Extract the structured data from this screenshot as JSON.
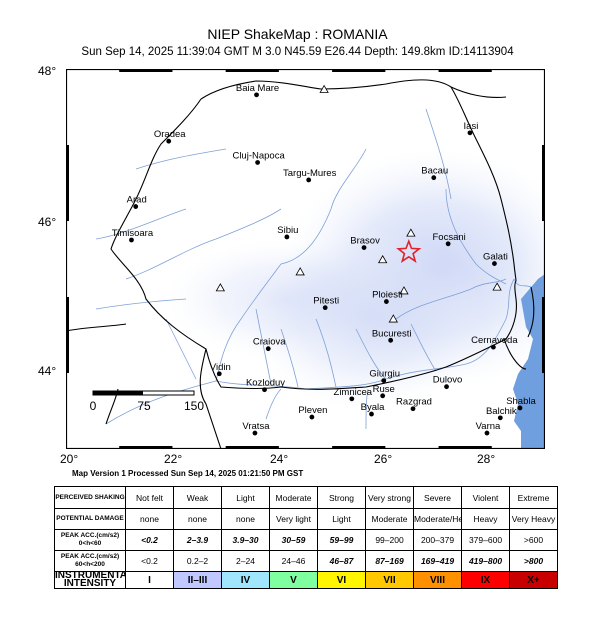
{
  "title": "NIEP ShakeMap : ROMANIA",
  "subtitle": "Sun Sep 14, 2025 11:39:04 GMT   M 3.0   N45.59 E26.44   Depth: 149.8km   ID:14113904",
  "version_line": "Map Version 1 Processed Sun Sep 14, 2025 01:21:50 PM GST",
  "axes": {
    "lat_labels": [
      "48°",
      "46°",
      "44°"
    ],
    "lon_labels": [
      "20°",
      "22°",
      "24°",
      "26°",
      "28°"
    ]
  },
  "scale_bar": {
    "labels": [
      "0",
      "75",
      "150"
    ]
  },
  "epicenter": {
    "lat": 45.59,
    "lon": 26.44,
    "marker": "star-icon",
    "color": "#e0242a"
  },
  "cities": [
    {
      "name": "Baia Mare",
      "lon": 23.58,
      "lat": 47.66
    },
    {
      "name": "Oradea",
      "lon": 21.93,
      "lat": 47.05
    },
    {
      "name": "Iasi",
      "lon": 27.59,
      "lat": 47.16
    },
    {
      "name": "Cluj-Napoca",
      "lon": 23.6,
      "lat": 46.77
    },
    {
      "name": "Targu-Mures",
      "lon": 24.56,
      "lat": 46.54
    },
    {
      "name": "Bacau",
      "lon": 26.91,
      "lat": 46.57
    },
    {
      "name": "Arad",
      "lon": 21.31,
      "lat": 46.19
    },
    {
      "name": "Timisoara",
      "lon": 21.23,
      "lat": 45.75
    },
    {
      "name": "Sibiu",
      "lon": 24.15,
      "lat": 45.79
    },
    {
      "name": "Brasov",
      "lon": 25.6,
      "lat": 45.65
    },
    {
      "name": "Focsani",
      "lon": 27.18,
      "lat": 45.7
    },
    {
      "name": "Galati",
      "lon": 28.05,
      "lat": 45.44
    },
    {
      "name": "Ploiesti",
      "lon": 26.02,
      "lat": 44.94
    },
    {
      "name": "Pitesti",
      "lon": 24.87,
      "lat": 44.86
    },
    {
      "name": "Bucuresti",
      "lon": 26.1,
      "lat": 44.43
    },
    {
      "name": "Craiova",
      "lon": 23.8,
      "lat": 44.32
    },
    {
      "name": "Cernavoda",
      "lon": 28.03,
      "lat": 44.34
    },
    {
      "name": "Giurgiu",
      "lon": 25.97,
      "lat": 43.9
    },
    {
      "name": "Dulovo",
      "lon": 27.15,
      "lat": 43.82
    },
    {
      "name": "Kozloduy",
      "lon": 23.73,
      "lat": 43.78
    },
    {
      "name": "Zimnicea",
      "lon": 25.37,
      "lat": 43.66
    },
    {
      "name": "Ruse",
      "lon": 25.95,
      "lat": 43.7
    },
    {
      "name": "Vidin",
      "lon": 22.88,
      "lat": 43.99
    },
    {
      "name": "Pleven",
      "lon": 24.62,
      "lat": 43.42
    },
    {
      "name": "Byala",
      "lon": 25.74,
      "lat": 43.46
    },
    {
      "name": "Razgrad",
      "lon": 26.52,
      "lat": 43.53
    },
    {
      "name": "Shabla",
      "lon": 28.53,
      "lat": 43.54
    },
    {
      "name": "Balchik",
      "lon": 28.16,
      "lat": 43.41
    },
    {
      "name": "Vratsa",
      "lon": 23.55,
      "lat": 43.21
    },
    {
      "name": "Varna",
      "lon": 27.91,
      "lat": 43.21
    }
  ],
  "stations": [
    {
      "lon": 24.85,
      "lat": 47.73
    },
    {
      "lon": 26.48,
      "lat": 45.84
    },
    {
      "lon": 25.95,
      "lat": 45.49
    },
    {
      "lon": 24.4,
      "lat": 45.33
    },
    {
      "lon": 22.9,
      "lat": 45.12
    },
    {
      "lon": 26.35,
      "lat": 45.08
    },
    {
      "lon": 26.15,
      "lat": 44.71
    },
    {
      "lon": 28.1,
      "lat": 45.13
    }
  ],
  "legend": {
    "rows": [
      {
        "header": "PERCEIVED SHAKING",
        "cells": [
          "Not felt",
          "Weak",
          "Light",
          "Moderate",
          "Strong",
          "Very strong",
          "Severe",
          "Violent",
          "Extreme"
        ]
      },
      {
        "header": "POTENTIAL DAMAGE",
        "cells": [
          "none",
          "none",
          "none",
          "Very light",
          "Light",
          "Moderate",
          "Moderate/Heavy",
          "Heavy",
          "Very Heavy"
        ]
      },
      {
        "header": "PEAK ACC.(cm/s2) 0<h<60",
        "cells": [
          "<0.2",
          "2–3.9",
          "3.9–30",
          "30–59",
          "59–99",
          "99–200",
          "200–379",
          "379–600",
          ">600"
        ]
      },
      {
        "header": "PEAK ACC.(cm/s2) 60<h<200",
        "cells": [
          "<0.2",
          "0.2–2",
          "2–24",
          "24–46",
          "46–87",
          "87–169",
          "169–419",
          "419–800",
          ">800"
        ]
      },
      {
        "header": "INSTRUMENTAL INTENSITY",
        "cells": [
          "I",
          "II–III",
          "IV",
          "V",
          "VI",
          "VII",
          "VIII",
          "IX",
          "X+"
        ]
      }
    ],
    "intensity_colors": [
      "#ffffff",
      "#c0c8ff",
      "#a0e6ff",
      "#80ffa0",
      "#fff500",
      "#ffc800",
      "#ff9100",
      "#ff0000",
      "#c80000"
    ]
  }
}
